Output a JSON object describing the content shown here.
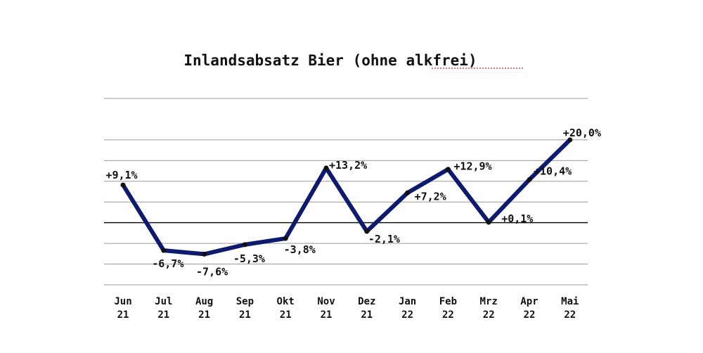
{
  "chart_data": {
    "type": "line",
    "title": "Inlandsabsatz Bier (ohne alkfrei)",
    "categories": [
      [
        "Jun",
        "21"
      ],
      [
        "Jul",
        "21"
      ],
      [
        "Aug",
        "21"
      ],
      [
        "Sep",
        "21"
      ],
      [
        "Okt",
        "21"
      ],
      [
        "Nov",
        "21"
      ],
      [
        "Dez",
        "21"
      ],
      [
        "Jan",
        "22"
      ],
      [
        "Feb",
        "22"
      ],
      [
        "Mrz",
        "22"
      ],
      [
        "Apr",
        "22"
      ],
      [
        "Mai",
        "22"
      ]
    ],
    "series": [
      {
        "values": [
          9.1,
          -6.7,
          -7.6,
          -5.3,
          -3.8,
          13.2,
          -2.1,
          7.2,
          12.9,
          0.1,
          10.4,
          20.0
        ],
        "labels": [
          "+9,1%",
          "-6,7%",
          "-7,6%",
          "-5,3%",
          "-3,8%",
          "+13,2%",
          "-2,1%",
          "+7,2%",
          "+12,9%",
          "+0,1%",
          "+10,4%",
          "+20,0%"
        ]
      }
    ],
    "ylim": [
      -15,
      30
    ],
    "gridlines": [
      -15,
      -10,
      -5,
      5,
      10,
      15,
      20
    ],
    "zero_line": true,
    "grid": true,
    "line_color": "#0d1a6e",
    "label_color": "#111111"
  }
}
